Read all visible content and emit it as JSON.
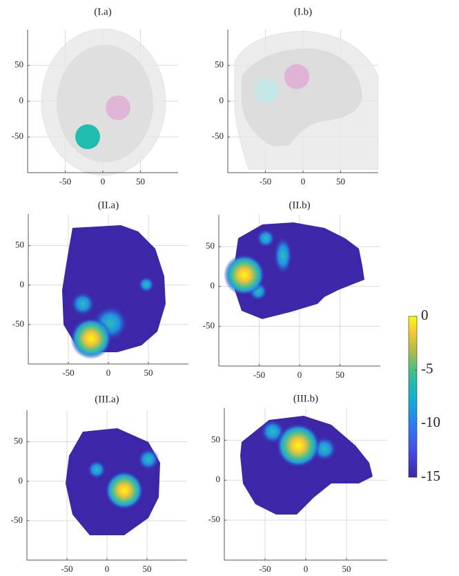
{
  "chart_data": [
    {
      "type": "image",
      "title": "(I.a)",
      "xlim": [
        -100,
        100
      ],
      "ylim": [
        -100,
        100
      ],
      "xticks": [
        -50,
        0,
        50
      ],
      "yticks": [
        -50,
        0,
        50
      ],
      "grid": true
    },
    {
      "type": "image",
      "title": "(I.b)",
      "xlim": [
        -100,
        100
      ],
      "ylim": [
        -100,
        100
      ],
      "xticks": [
        -50,
        0,
        50
      ],
      "yticks": [
        -50,
        0,
        50
      ],
      "grid": true
    },
    {
      "type": "image",
      "title": "(II.a)",
      "xlim": [
        -100,
        100
      ],
      "ylim": [
        -100,
        90
      ],
      "xticks": [
        -50,
        0,
        50
      ],
      "yticks": [
        -50,
        0,
        50
      ],
      "grid": true
    },
    {
      "type": "image",
      "title": "(II.b)",
      "xlim": [
        -100,
        100
      ],
      "ylim": [
        -100,
        90
      ],
      "xticks": [
        -50,
        0,
        50
      ],
      "yticks": [
        -50,
        0,
        50
      ],
      "grid": true
    },
    {
      "type": "image",
      "title": "(III.a)",
      "xlim": [
        -100,
        100
      ],
      "ylim": [
        -100,
        90
      ],
      "xticks": [
        -50,
        0,
        50
      ],
      "yticks": [
        -50,
        0,
        50
      ],
      "grid": true
    },
    {
      "type": "image",
      "title": "(III.b)",
      "xlim": [
        -100,
        100
      ],
      "ylim": [
        -100,
        90
      ],
      "xticks": [
        -50,
        0,
        50
      ],
      "yticks": [
        -50,
        0,
        50
      ],
      "grid": true
    },
    {
      "type": "colorbar",
      "clim": [
        -15,
        0
      ],
      "ticks": [
        0,
        -5,
        -10,
        -15
      ]
    }
  ]
}
